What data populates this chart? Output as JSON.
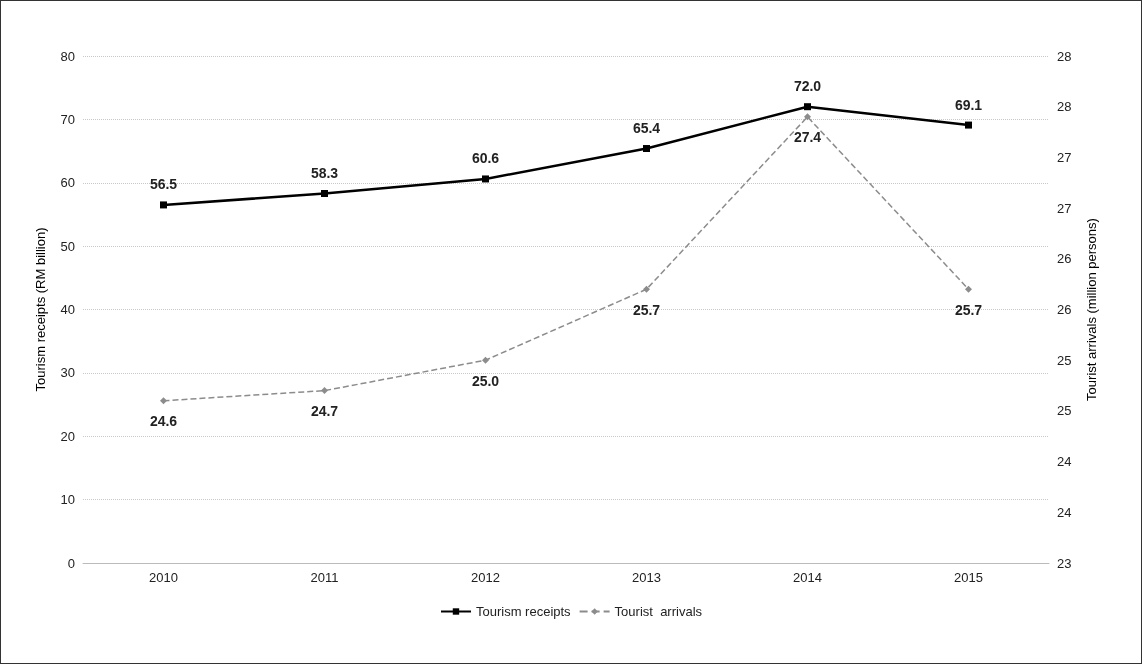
{
  "chart_data": {
    "type": "line",
    "ylabel": "Tourism receipts (RM billion)",
    "y2label": "Tourist arrivals (million persons)",
    "categories": [
      "2010",
      "2011",
      "2012",
      "2013",
      "2014",
      "2015"
    ],
    "series": [
      {
        "name": "Tourism receipts",
        "color": "#000000",
        "values": [
          56.5,
          58.3,
          60.6,
          65.4,
          72.0,
          69.1
        ],
        "value_labels": [
          "56.5",
          "58.3",
          "60.6",
          "65.4",
          "72.0",
          "69.1"
        ],
        "marker": "square",
        "line_style": "solid"
      },
      {
        "name": "Tourist  arrivals",
        "color": "#8c8c8c",
        "values": [
          24.6,
          24.7,
          25.0,
          25.7,
          27.4,
          25.7
        ],
        "value_labels": [
          "24.6",
          "24.7",
          "25.0",
          "25.7",
          "27.4",
          "25.7"
        ],
        "axis": "y2",
        "marker": "diamond",
        "line_style": "dashed"
      }
    ],
    "ylim": [
      0,
      80
    ],
    "yticks": [
      0,
      10,
      20,
      30,
      40,
      50,
      60,
      70,
      80
    ],
    "y2lim": [
      23,
      28
    ],
    "y2ticks": [
      23,
      {
        "value": 23.5,
        "label": "24"
      },
      24,
      {
        "value": 24.5,
        "label": "25"
      },
      25,
      {
        "value": 25.5,
        "label": "26"
      },
      26,
      {
        "value": 26.5,
        "label": "27"
      },
      27,
      {
        "value": 27.5,
        "label": "28"
      },
      28
    ],
    "grid": "y",
    "legend": "bottom"
  }
}
